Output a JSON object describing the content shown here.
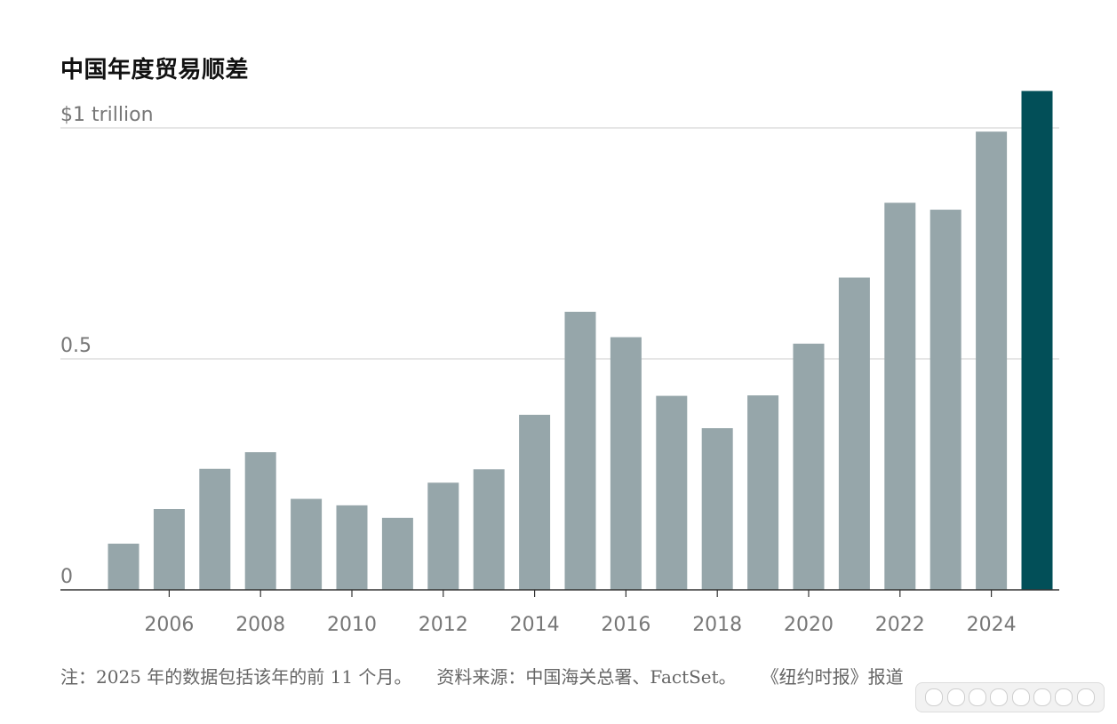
{
  "chart_data": {
    "type": "bar",
    "title": "中国年度贸易顺差",
    "categories": [
      "2005",
      "2006",
      "2007",
      "2008",
      "2009",
      "2010",
      "2011",
      "2012",
      "2013",
      "2014",
      "2015",
      "2016",
      "2017",
      "2018",
      "2019",
      "2020",
      "2021",
      "2022",
      "2023",
      "2024",
      "2025"
    ],
    "values": [
      0.1,
      0.175,
      0.262,
      0.298,
      0.197,
      0.183,
      0.156,
      0.232,
      0.261,
      0.379,
      0.602,
      0.547,
      0.42,
      0.35,
      0.421,
      0.533,
      0.676,
      0.838,
      0.823,
      0.992,
      1.08
    ],
    "ylim": [
      0,
      1.0
    ],
    "yticks": [
      {
        "value": 0,
        "label": "0"
      },
      {
        "value": 0.5,
        "label": "0.5"
      },
      {
        "value": 1.0,
        "label": "$1 trillion"
      }
    ],
    "xtick_labels": [
      "2006",
      "2008",
      "2010",
      "2012",
      "2014",
      "2016",
      "2018",
      "2020",
      "2022",
      "2024"
    ],
    "grid": true,
    "colors": {
      "bar": "#96a6aa",
      "highlight": "#024f58",
      "grid": "#dddddd",
      "axis": "#333333",
      "tick_label": "#777777"
    },
    "highlight_category": "2025"
  },
  "footnote": {
    "note": "注：2025 年的数据包括该年的前 11 个月。",
    "source": "资料来源：中国海关总署、FactSet。",
    "credit": "《纽约时报》报道"
  }
}
